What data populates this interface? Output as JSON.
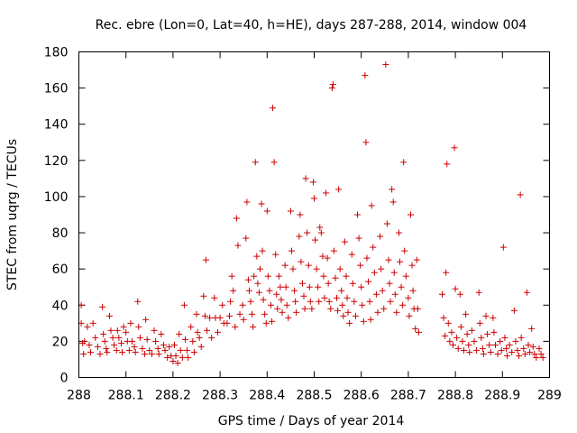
{
  "chart_data": {
    "type": "scatter",
    "title": "Rec. ebre (Lon=0, Lat=40, h=HE), days 287-288, 2014, window 004",
    "xlabel": "GPS time / Days of year 2014",
    "ylabel": "STEC from uqrg / TECUs",
    "xlim": [
      288,
      289
    ],
    "ylim": [
      0,
      180
    ],
    "x_ticks": [
      "288",
      "288.1",
      "288.2",
      "288.3",
      "288.4",
      "288.5",
      "288.6",
      "288.7",
      "288.8",
      "288.9",
      "289"
    ],
    "y_ticks": [
      "0",
      "20",
      "40",
      "60",
      "80",
      "100",
      "120",
      "140",
      "160",
      "180"
    ],
    "grid": false,
    "marker": "plus",
    "marker_color": "#cc0000",
    "series": [
      {
        "name": "",
        "points": [
          [
            288.005,
            40
          ],
          [
            288.005,
            30
          ],
          [
            288.008,
            19
          ],
          [
            288.01,
            13
          ],
          [
            288.012,
            20
          ],
          [
            288.018,
            28
          ],
          [
            288.022,
            18
          ],
          [
            288.025,
            14
          ],
          [
            288.03,
            30
          ],
          [
            288.035,
            22
          ],
          [
            288.04,
            17
          ],
          [
            288.045,
            13
          ],
          [
            288.05,
            39
          ],
          [
            288.052,
            24
          ],
          [
            288.055,
            20
          ],
          [
            288.058,
            16
          ],
          [
            288.06,
            14
          ],
          [
            288.065,
            34
          ],
          [
            288.068,
            26
          ],
          [
            288.072,
            22
          ],
          [
            288.075,
            18
          ],
          [
            288.08,
            15
          ],
          [
            288.082,
            26
          ],
          [
            288.085,
            22
          ],
          [
            288.09,
            19
          ],
          [
            288.092,
            14
          ],
          [
            288.095,
            28
          ],
          [
            288.1,
            25
          ],
          [
            288.103,
            20
          ],
          [
            288.107,
            15
          ],
          [
            288.11,
            30
          ],
          [
            288.113,
            20
          ],
          [
            288.118,
            17
          ],
          [
            288.12,
            14
          ],
          [
            288.125,
            42
          ],
          [
            288.127,
            28
          ],
          [
            288.13,
            22
          ],
          [
            288.135,
            16
          ],
          [
            288.14,
            13
          ],
          [
            288.142,
            32
          ],
          [
            288.145,
            21
          ],
          [
            288.15,
            15
          ],
          [
            288.155,
            13
          ],
          [
            288.16,
            26
          ],
          [
            288.163,
            20
          ],
          [
            288.168,
            16
          ],
          [
            288.17,
            13
          ],
          [
            288.175,
            24
          ],
          [
            288.18,
            18
          ],
          [
            288.183,
            15
          ],
          [
            288.188,
            11
          ],
          [
            288.192,
            17
          ],
          [
            288.196,
            12
          ],
          [
            288.2,
            9
          ],
          [
            288.203,
            18
          ],
          [
            288.206,
            12
          ],
          [
            288.21,
            8
          ],
          [
            288.213,
            24
          ],
          [
            288.216,
            15
          ],
          [
            288.22,
            11
          ],
          [
            288.224,
            40
          ],
          [
            288.226,
            21
          ],
          [
            288.23,
            15
          ],
          [
            288.232,
            11
          ],
          [
            288.238,
            28
          ],
          [
            288.242,
            20
          ],
          [
            288.245,
            14
          ],
          [
            288.25,
            35
          ],
          [
            288.252,
            25
          ],
          [
            288.256,
            22
          ],
          [
            288.26,
            17
          ],
          [
            288.265,
            45
          ],
          [
            288.268,
            34
          ],
          [
            288.27,
            65
          ],
          [
            288.272,
            26
          ],
          [
            288.278,
            33
          ],
          [
            288.282,
            22
          ],
          [
            288.288,
            44
          ],
          [
            288.29,
            33
          ],
          [
            288.295,
            25
          ],
          [
            288.3,
            33
          ],
          [
            288.305,
            40
          ],
          [
            288.308,
            30
          ],
          [
            288.315,
            30
          ],
          [
            288.32,
            34
          ],
          [
            288.322,
            42
          ],
          [
            288.325,
            56
          ],
          [
            288.328,
            48
          ],
          [
            288.332,
            28
          ],
          [
            288.335,
            88
          ],
          [
            288.338,
            73
          ],
          [
            288.342,
            35
          ],
          [
            288.348,
            40
          ],
          [
            288.35,
            32
          ],
          [
            288.355,
            77
          ],
          [
            288.357,
            97
          ],
          [
            288.36,
            54
          ],
          [
            288.362,
            48
          ],
          [
            288.365,
            42
          ],
          [
            288.368,
            35
          ],
          [
            288.37,
            28
          ],
          [
            288.372,
            56
          ],
          [
            288.375,
            119
          ],
          [
            288.378,
            67
          ],
          [
            288.38,
            52
          ],
          [
            288.383,
            47
          ],
          [
            288.385,
            60
          ],
          [
            288.388,
            96
          ],
          [
            288.39,
            70
          ],
          [
            288.392,
            43
          ],
          [
            288.395,
            35
          ],
          [
            288.398,
            30
          ],
          [
            288.4,
            92
          ],
          [
            288.402,
            56
          ],
          [
            288.405,
            48
          ],
          [
            288.408,
            40
          ],
          [
            288.41,
            31
          ],
          [
            288.412,
            149
          ],
          [
            288.415,
            119
          ],
          [
            288.418,
            68
          ],
          [
            288.42,
            46
          ],
          [
            288.422,
            38
          ],
          [
            288.425,
            56
          ],
          [
            288.428,
            50
          ],
          [
            288.43,
            43
          ],
          [
            288.432,
            36
          ],
          [
            288.438,
            62
          ],
          [
            288.44,
            50
          ],
          [
            288.442,
            40
          ],
          [
            288.445,
            33
          ],
          [
            288.45,
            92
          ],
          [
            288.452,
            70
          ],
          [
            288.455,
            60
          ],
          [
            288.458,
            48
          ],
          [
            288.46,
            42
          ],
          [
            288.462,
            36
          ],
          [
            288.468,
            78
          ],
          [
            288.47,
            90
          ],
          [
            288.472,
            64
          ],
          [
            288.475,
            52
          ],
          [
            288.478,
            45
          ],
          [
            288.48,
            38
          ],
          [
            288.482,
            110
          ],
          [
            288.485,
            80
          ],
          [
            288.488,
            62
          ],
          [
            288.49,
            50
          ],
          [
            288.492,
            42
          ],
          [
            288.495,
            38
          ],
          [
            288.498,
            108
          ],
          [
            288.5,
            99
          ],
          [
            288.502,
            76
          ],
          [
            288.505,
            60
          ],
          [
            288.508,
            50
          ],
          [
            288.51,
            42
          ],
          [
            288.512,
            83
          ],
          [
            288.515,
            80
          ],
          [
            288.518,
            67
          ],
          [
            288.52,
            56
          ],
          [
            288.522,
            44
          ],
          [
            288.525,
            102
          ],
          [
            288.528,
            66
          ],
          [
            288.53,
            52
          ],
          [
            288.532,
            42
          ],
          [
            288.535,
            38
          ],
          [
            288.538,
            160
          ],
          [
            288.54,
            162
          ],
          [
            288.542,
            70
          ],
          [
            288.545,
            55
          ],
          [
            288.548,
            44
          ],
          [
            288.55,
            37
          ],
          [
            288.552,
            104
          ],
          [
            288.555,
            60
          ],
          [
            288.558,
            48
          ],
          [
            288.56,
            40
          ],
          [
            288.562,
            34
          ],
          [
            288.565,
            75
          ],
          [
            288.568,
            56
          ],
          [
            288.57,
            44
          ],
          [
            288.572,
            36
          ],
          [
            288.575,
            30
          ],
          [
            288.58,
            68
          ],
          [
            288.582,
            52
          ],
          [
            288.585,
            42
          ],
          [
            288.588,
            34
          ],
          [
            288.592,
            90
          ],
          [
            288.595,
            77
          ],
          [
            288.598,
            62
          ],
          [
            288.6,
            50
          ],
          [
            288.602,
            40
          ],
          [
            288.605,
            31
          ],
          [
            288.608,
            167
          ],
          [
            288.61,
            130
          ],
          [
            288.612,
            66
          ],
          [
            288.615,
            53
          ],
          [
            288.618,
            42
          ],
          [
            288.62,
            32
          ],
          [
            288.622,
            95
          ],
          [
            288.625,
            72
          ],
          [
            288.628,
            58
          ],
          [
            288.632,
            46
          ],
          [
            288.635,
            36
          ],
          [
            288.64,
            78
          ],
          [
            288.642,
            60
          ],
          [
            288.645,
            48
          ],
          [
            288.648,
            38
          ],
          [
            288.652,
            173
          ],
          [
            288.655,
            85
          ],
          [
            288.658,
            65
          ],
          [
            288.66,
            52
          ],
          [
            288.662,
            42
          ],
          [
            288.665,
            104
          ],
          [
            288.668,
            97
          ],
          [
            288.67,
            58
          ],
          [
            288.672,
            46
          ],
          [
            288.675,
            36
          ],
          [
            288.68,
            80
          ],
          [
            288.682,
            64
          ],
          [
            288.685,
            50
          ],
          [
            288.688,
            40
          ],
          [
            288.69,
            119
          ],
          [
            288.692,
            70
          ],
          [
            288.695,
            56
          ],
          [
            288.7,
            44
          ],
          [
            288.702,
            34
          ],
          [
            288.705,
            90
          ],
          [
            288.708,
            62
          ],
          [
            288.71,
            48
          ],
          [
            288.712,
            38
          ],
          [
            288.715,
            27
          ],
          [
            288.718,
            65
          ],
          [
            288.72,
            38
          ],
          [
            288.722,
            25
          ],
          [
            288.772,
            46
          ],
          [
            288.775,
            33
          ],
          [
            288.778,
            23
          ],
          [
            288.78,
            58
          ],
          [
            288.782,
            118
          ],
          [
            288.785,
            30
          ],
          [
            288.788,
            20
          ],
          [
            288.792,
            25
          ],
          [
            288.795,
            18
          ],
          [
            288.798,
            127
          ],
          [
            288.8,
            49
          ],
          [
            288.803,
            22
          ],
          [
            288.806,
            16
          ],
          [
            288.81,
            46
          ],
          [
            288.812,
            28
          ],
          [
            288.815,
            20
          ],
          [
            288.818,
            15
          ],
          [
            288.822,
            35
          ],
          [
            288.825,
            24
          ],
          [
            288.828,
            18
          ],
          [
            288.83,
            14
          ],
          [
            288.835,
            26
          ],
          [
            288.84,
            20
          ],
          [
            288.845,
            15
          ],
          [
            288.85,
            47
          ],
          [
            288.852,
            30
          ],
          [
            288.855,
            22
          ],
          [
            288.858,
            16
          ],
          [
            288.86,
            13
          ],
          [
            288.865,
            34
          ],
          [
            288.868,
            24
          ],
          [
            288.872,
            18
          ],
          [
            288.875,
            14
          ],
          [
            288.88,
            33
          ],
          [
            288.882,
            25
          ],
          [
            288.885,
            18
          ],
          [
            288.89,
            13
          ],
          [
            288.895,
            20
          ],
          [
            288.898,
            15
          ],
          [
            288.902,
            72
          ],
          [
            288.905,
            22
          ],
          [
            288.908,
            16
          ],
          [
            288.91,
            12
          ],
          [
            288.915,
            18
          ],
          [
            288.92,
            14
          ],
          [
            288.925,
            37
          ],
          [
            288.928,
            20
          ],
          [
            288.932,
            15
          ],
          [
            288.935,
            12
          ],
          [
            288.938,
            101
          ],
          [
            288.94,
            22
          ],
          [
            288.945,
            16
          ],
          [
            288.948,
            13
          ],
          [
            288.952,
            47
          ],
          [
            288.955,
            18
          ],
          [
            288.958,
            14
          ],
          [
            288.962,
            27
          ],
          [
            288.965,
            17
          ],
          [
            288.968,
            13
          ],
          [
            288.972,
            11
          ],
          [
            288.978,
            16
          ],
          [
            288.982,
            13
          ],
          [
            288.986,
            11
          ]
        ]
      }
    ]
  }
}
